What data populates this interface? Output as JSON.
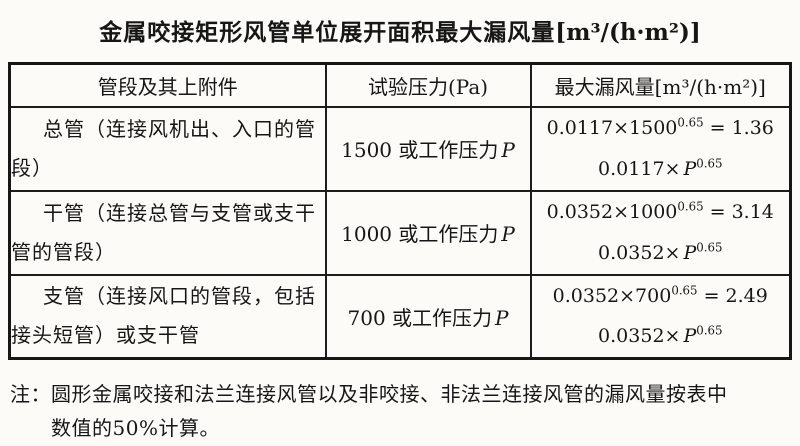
{
  "title": {
    "text": "金属咬接矩形风管单位展开面积最大漏风量",
    "unit": "[m³/(h·m²)]"
  },
  "table": {
    "headers": [
      "管段及其上附件",
      "试验压力(Pa)",
      "最大漏风量[m³/(h·m²)]"
    ],
    "rows": [
      {
        "segment": "总管（连接风机出、入口的管段）",
        "pressure": "1500 或工作压力",
        "pressure_var": "P",
        "formula": {
          "calc": "0.0117×1500",
          "calc_exp": "0.65",
          "result": " = 1.36",
          "gen": "0.0117×",
          "gen_var": "P",
          "gen_exp": "0.65"
        }
      },
      {
        "segment": "干管（连接总管与支管或支干管的管段）",
        "pressure": "1000 或工作压力",
        "pressure_var": "P",
        "formula": {
          "calc": "0.0352×1000",
          "calc_exp": "0.65",
          "result": " = 3.14",
          "gen": "0.0352×",
          "gen_var": "P",
          "gen_exp": "0.65"
        }
      },
      {
        "segment": "支管（连接风口的管段，包括接头短管）或支干管",
        "pressure": "700 或工作压力",
        "pressure_var": "P",
        "formula": {
          "calc": "0.0352×700",
          "calc_exp": "0.65",
          "result": " = 2.49",
          "gen": "0.0352×",
          "gen_var": "P",
          "gen_exp": "0.65"
        }
      }
    ]
  },
  "note": {
    "label": "注：",
    "line1": "圆形金属咬接和法兰连接风管以及非咬接、非法兰连接风管的漏风量按表中",
    "line2": "数值的50%计算。"
  },
  "colors": {
    "paper": "#fcfbf8",
    "ink": "#161616",
    "border": "#1c1c1c"
  }
}
